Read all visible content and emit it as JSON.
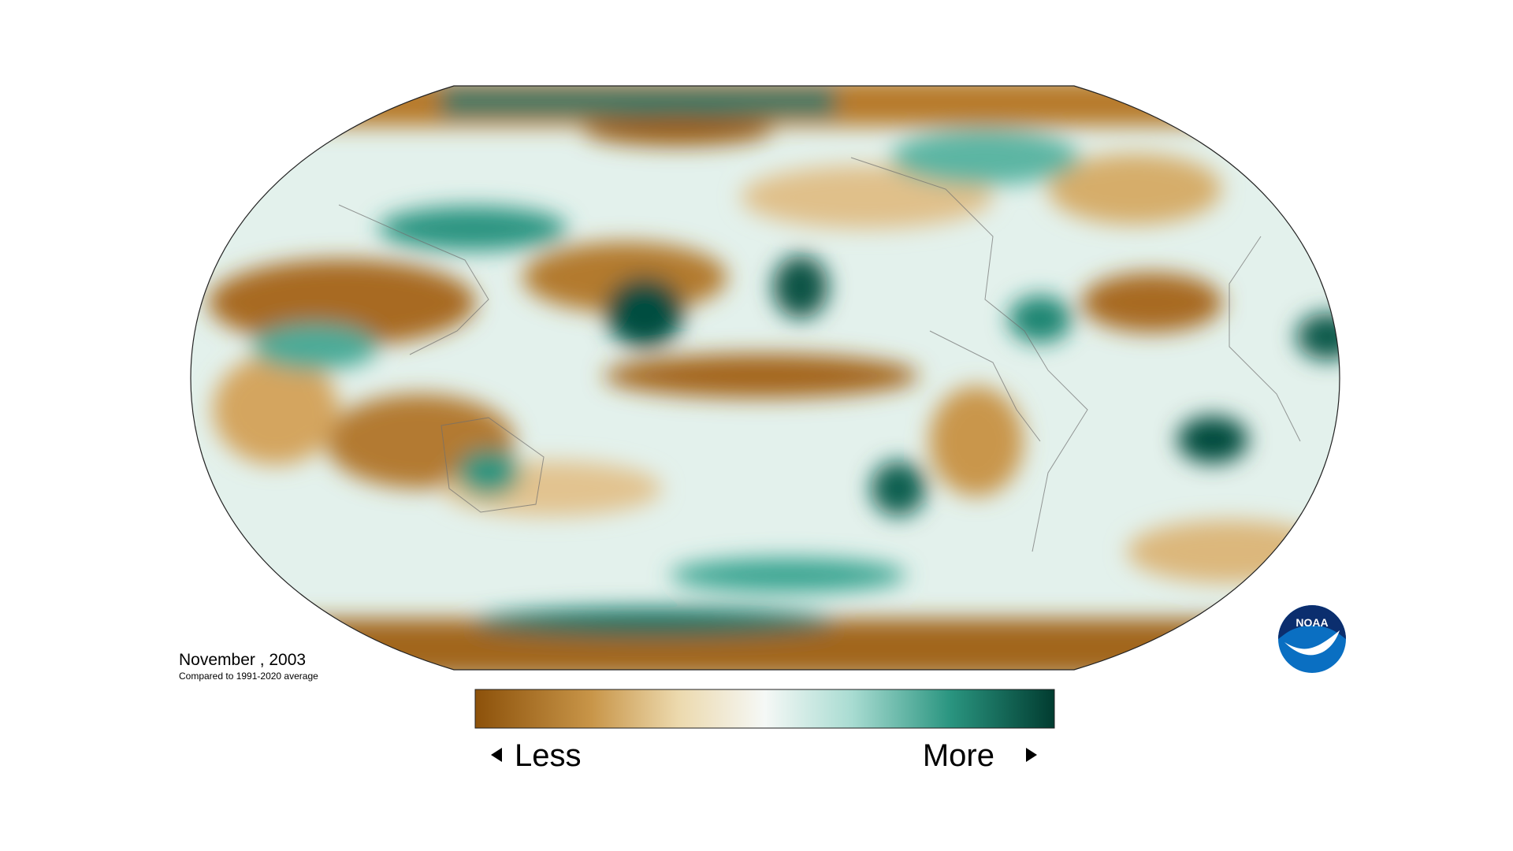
{
  "map": {
    "title": "November , 2003",
    "subtitle": "Compared to 1991-2020 average"
  },
  "legend": {
    "low_label": "Less",
    "high_label": "More"
  },
  "logo": {
    "text": "NOAA"
  }
}
